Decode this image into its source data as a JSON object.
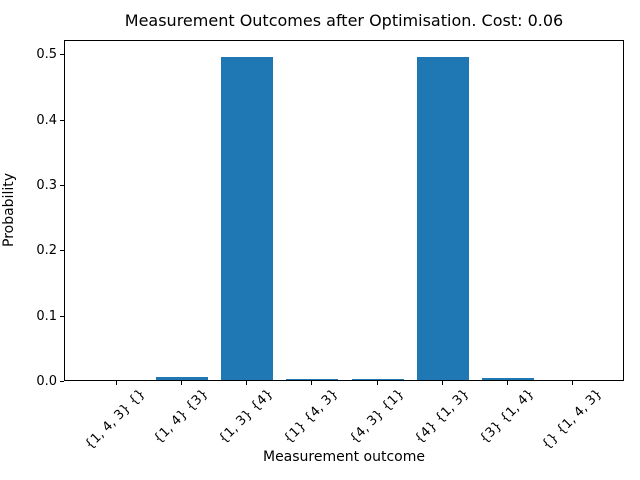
{
  "chart_data": {
    "type": "bar",
    "title": "Measurement Outcomes after Optimisation. Cost: 0.06",
    "xlabel": "Measurement outcome",
    "ylabel": "Probability",
    "categories": [
      "{1, 4, 3} {}",
      "{1, 4} {3}",
      "{1, 3} {4}",
      "{1} {4, 3}",
      "{4, 3} {1}",
      "{4} {1, 3}",
      "{3} {1, 4}",
      "{} {1, 4, 3}"
    ],
    "values": [
      0.0,
      0.004,
      0.495,
      0.0015,
      0.0015,
      0.495,
      0.003,
      0.0
    ],
    "yticks": [
      "0.0",
      "0.1",
      "0.2",
      "0.3",
      "0.4",
      "0.5"
    ],
    "ylim": [
      0.0,
      0.522
    ],
    "xtick_rotation": 45,
    "grid": false,
    "legend": null,
    "bar_color": "#1f77b4",
    "axis_color": "#000000",
    "background_color": "#ffffff"
  }
}
